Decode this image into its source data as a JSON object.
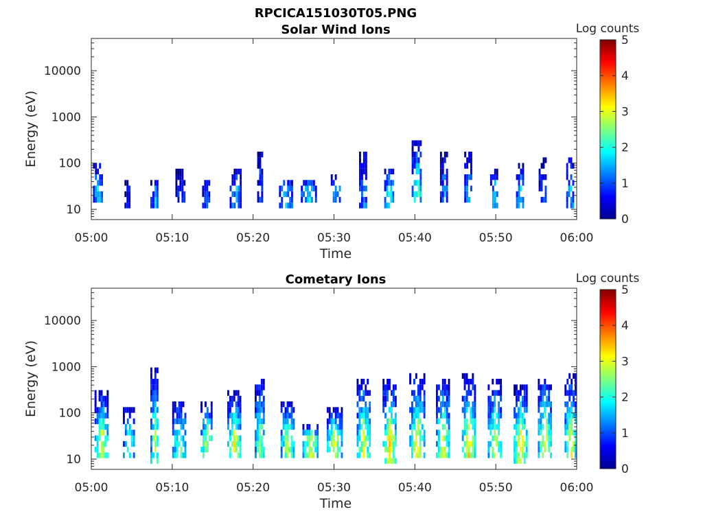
{
  "figure_title": "RPCICA151030T05.PNG",
  "chart_data": [
    {
      "type": "heatmap",
      "title": "Solar Wind Ions",
      "xlabel": "Time",
      "ylabel": "Energy (eV)",
      "x_range": [
        "05:00",
        "06:00"
      ],
      "x_ticks": [
        "05:00",
        "05:10",
        "05:20",
        "05:30",
        "05:40",
        "05:50",
        "06:00"
      ],
      "y_scale": "log",
      "y_range": [
        6,
        50000
      ],
      "y_ticks": [
        {
          "value": 10,
          "label": "10"
        },
        {
          "value": 100,
          "label": "100"
        },
        {
          "value": 1000,
          "label": "1000"
        },
        {
          "value": 10000,
          "label": "10000"
        }
      ],
      "colorbar": {
        "label": "Log counts",
        "range": [
          0,
          5
        ],
        "ticks": [
          "0",
          "1",
          "2",
          "3",
          "4",
          "5"
        ],
        "colormap": "jet"
      },
      "bursts": [
        {
          "t": 0.8,
          "w": 1.2,
          "emin": 14,
          "emax": 100,
          "peak": 1.8
        },
        {
          "t": 4.4,
          "w": 0.6,
          "emin": 12,
          "emax": 40,
          "peak": 0.6
        },
        {
          "t": 7.8,
          "w": 1.0,
          "emin": 12,
          "emax": 45,
          "peak": 1.4
        },
        {
          "t": 11.0,
          "w": 1.2,
          "emin": 16,
          "emax": 70,
          "peak": 0.8
        },
        {
          "t": 14.2,
          "w": 1.0,
          "emin": 12,
          "emax": 40,
          "peak": 0.9
        },
        {
          "t": 17.8,
          "w": 1.4,
          "emin": 12,
          "emax": 80,
          "peak": 1.5
        },
        {
          "t": 20.8,
          "w": 0.6,
          "emin": 16,
          "emax": 200,
          "peak": 1.2
        },
        {
          "t": 24.0,
          "w": 1.6,
          "emin": 12,
          "emax": 40,
          "peak": 1.5
        },
        {
          "t": 26.8,
          "w": 1.8,
          "emin": 16,
          "emax": 40,
          "peak": 1.7
        },
        {
          "t": 30.2,
          "w": 1.2,
          "emin": 16,
          "emax": 60,
          "peak": 1.6
        },
        {
          "t": 33.6,
          "w": 1.0,
          "emin": 12,
          "emax": 180,
          "peak": 1.3
        },
        {
          "t": 36.8,
          "w": 1.2,
          "emin": 12,
          "emax": 80,
          "peak": 1.9
        },
        {
          "t": 40.2,
          "w": 1.2,
          "emin": 14,
          "emax": 300,
          "peak": 2.3
        },
        {
          "t": 43.6,
          "w": 1.0,
          "emin": 14,
          "emax": 200,
          "peak": 1.3
        },
        {
          "t": 46.6,
          "w": 1.0,
          "emin": 14,
          "emax": 160,
          "peak": 1.6
        },
        {
          "t": 49.8,
          "w": 1.0,
          "emin": 12,
          "emax": 80,
          "peak": 1.5
        },
        {
          "t": 53.0,
          "w": 1.0,
          "emin": 12,
          "emax": 90,
          "peak": 1.8
        },
        {
          "t": 55.8,
          "w": 1.0,
          "emin": 14,
          "emax": 150,
          "peak": 1.0
        },
        {
          "t": 59.2,
          "w": 1.0,
          "emin": 12,
          "emax": 150,
          "peak": 1.4
        }
      ]
    },
    {
      "type": "heatmap",
      "title": "Cometary Ions",
      "xlabel": "Time",
      "ylabel": "Energy (eV)",
      "x_range": [
        "05:00",
        "06:00"
      ],
      "x_ticks": [
        "05:00",
        "05:10",
        "05:20",
        "05:30",
        "05:40",
        "05:50",
        "06:00"
      ],
      "y_scale": "log",
      "y_range": [
        6,
        50000
      ],
      "y_ticks": [
        {
          "value": 10,
          "label": "10"
        },
        {
          "value": 100,
          "label": "100"
        },
        {
          "value": 1000,
          "label": "1000"
        },
        {
          "value": 10000,
          "label": "10000"
        }
      ],
      "colorbar": {
        "label": "Log counts",
        "range": [
          0,
          5
        ],
        "ticks": [
          "0",
          "1",
          "2",
          "3",
          "4",
          "5"
        ],
        "colormap": "jet"
      },
      "bursts": [
        {
          "t": 1.2,
          "w": 1.6,
          "emin": 10,
          "emax": 300,
          "peak": 3.1
        },
        {
          "t": 4.6,
          "w": 1.4,
          "emin": 10,
          "emax": 150,
          "peak": 2.2
        },
        {
          "t": 7.8,
          "w": 1.0,
          "emin": 8,
          "emax": 1000,
          "peak": 2.8
        },
        {
          "t": 10.8,
          "w": 1.6,
          "emin": 12,
          "emax": 200,
          "peak": 2.4
        },
        {
          "t": 14.2,
          "w": 1.4,
          "emin": 12,
          "emax": 200,
          "peak": 2.8
        },
        {
          "t": 17.6,
          "w": 1.6,
          "emin": 12,
          "emax": 300,
          "peak": 3.0
        },
        {
          "t": 20.8,
          "w": 1.2,
          "emin": 10,
          "emax": 600,
          "peak": 2.6
        },
        {
          "t": 24.2,
          "w": 1.6,
          "emin": 12,
          "emax": 200,
          "peak": 2.8
        },
        {
          "t": 27.0,
          "w": 1.8,
          "emin": 12,
          "emax": 60,
          "peak": 2.9
        },
        {
          "t": 30.0,
          "w": 1.8,
          "emin": 12,
          "emax": 120,
          "peak": 3.0
        },
        {
          "t": 33.6,
          "w": 1.6,
          "emin": 12,
          "emax": 600,
          "peak": 3.0
        },
        {
          "t": 36.8,
          "w": 1.6,
          "emin": 8,
          "emax": 500,
          "peak": 3.3
        },
        {
          "t": 40.2,
          "w": 1.8,
          "emin": 12,
          "emax": 700,
          "peak": 3.2
        },
        {
          "t": 43.4,
          "w": 1.6,
          "emin": 12,
          "emax": 600,
          "peak": 3.0
        },
        {
          "t": 46.6,
          "w": 1.6,
          "emin": 12,
          "emax": 700,
          "peak": 3.2
        },
        {
          "t": 49.8,
          "w": 1.6,
          "emin": 10,
          "emax": 500,
          "peak": 3.0
        },
        {
          "t": 53.0,
          "w": 1.6,
          "emin": 8,
          "emax": 400,
          "peak": 3.3
        },
        {
          "t": 56.0,
          "w": 1.6,
          "emin": 12,
          "emax": 600,
          "peak": 3.1
        },
        {
          "t": 59.2,
          "w": 1.4,
          "emin": 12,
          "emax": 700,
          "peak": 3.1
        }
      ]
    }
  ]
}
